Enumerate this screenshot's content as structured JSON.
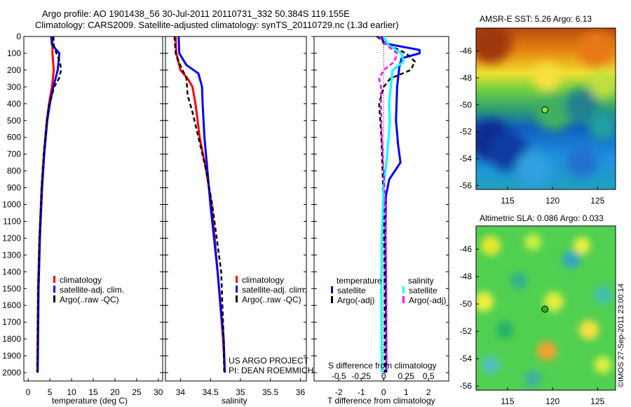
{
  "title": {
    "line1": "Argo profile: AO 1901438_56 30-Jul-2011 20110731_332 50.384S 119.155E",
    "line2": "Climatology: CARS2009. Satellite-adjusted climatology: synTS_20110729.nc (1.3d earlier)"
  },
  "credit": "©IMOS 27-Sep-2011 23:00:14",
  "chart_data": [
    {
      "type": "line",
      "id": "temperature",
      "xlabel": "temperature (deg C)",
      "ylabel": "",
      "xlim": [
        -1,
        31
      ],
      "ylim": [
        2050,
        0
      ],
      "xticks": [
        0,
        5,
        10,
        15,
        20,
        25,
        30
      ],
      "yticks": [
        0,
        100,
        200,
        300,
        400,
        500,
        600,
        700,
        800,
        900,
        1000,
        1100,
        1200,
        1300,
        1400,
        1500,
        1600,
        1700,
        1800,
        1900,
        2000
      ],
      "legend": [
        "climatology",
        "satellite-adj. clim.",
        "Argo(..raw -QC)"
      ],
      "legend_position": "bottom-center",
      "series": [
        {
          "name": "climatology",
          "color": "#ff0000",
          "depth": [
            0,
            100,
            200,
            300,
            400,
            500,
            700,
            900,
            1200,
            1500,
            2000
          ],
          "values": [
            5.6,
            5.6,
            5.9,
            5.5,
            4.8,
            4.3,
            3.6,
            3.1,
            2.6,
            2.3,
            2.1
          ]
        },
        {
          "name": "satellite-adj. clim.",
          "color": "#0000ff",
          "depth": [
            0,
            50,
            100,
            150,
            200,
            300,
            400,
            500,
            700,
            900,
            1200,
            1500,
            2000
          ],
          "values": [
            5.3,
            5.5,
            7.2,
            7.0,
            6.8,
            5.8,
            5.0,
            4.4,
            3.7,
            3.2,
            2.7,
            2.4,
            2.2
          ]
        },
        {
          "name": "Argo(..raw -QC)",
          "color": "#000000",
          "dashed": true,
          "depth": [
            0,
            50,
            100,
            150,
            200,
            250,
            300,
            400,
            500,
            700,
            900,
            1200,
            1500,
            2000
          ],
          "values": [
            5.8,
            5.9,
            6.5,
            7.3,
            7.6,
            7.1,
            6.0,
            4.9,
            4.3,
            3.6,
            3.1,
            2.6,
            2.3,
            2.1
          ]
        }
      ]
    },
    {
      "type": "line",
      "id": "salinity",
      "xlabel": "salinity",
      "xlim": [
        33.75,
        36.1
      ],
      "ylim": [
        2050,
        0
      ],
      "xticks": [
        34,
        34.5,
        35,
        35.5,
        36
      ],
      "legend": [
        "climatology",
        "satellite-adj. clim.",
        "Argo(..raw -QC)"
      ],
      "annotation": [
        "US ARGO PROJECT",
        "PI: DEAN ROEMMICH"
      ],
      "series": [
        {
          "name": "climatology",
          "color": "#ff0000",
          "depth": [
            0,
            100,
            200,
            250,
            300,
            400,
            600,
            800,
            1000,
            1400,
            1800,
            2000
          ],
          "values": [
            33.92,
            33.93,
            34.0,
            34.12,
            34.2,
            34.25,
            34.32,
            34.43,
            34.52,
            34.62,
            34.71,
            34.74
          ]
        },
        {
          "name": "satellite-adj. clim.",
          "color": "#0000ff",
          "depth": [
            0,
            100,
            170,
            220,
            300,
            400,
            600,
            800,
            1000,
            1400,
            1800,
            2000
          ],
          "values": [
            33.97,
            33.98,
            34.1,
            34.3,
            34.36,
            34.37,
            34.4,
            34.45,
            34.5,
            34.62,
            34.72,
            34.74
          ]
        },
        {
          "name": "Argo(..raw -QC)",
          "color": "#000000",
          "dashed": true,
          "depth": [
            0,
            100,
            150,
            250,
            350,
            450,
            600,
            800,
            1000,
            1400,
            1800,
            2000
          ],
          "values": [
            33.9,
            33.92,
            33.97,
            34.1,
            34.12,
            34.2,
            34.3,
            34.43,
            34.53,
            34.68,
            34.72,
            34.73
          ]
        }
      ]
    },
    {
      "type": "line",
      "id": "differences",
      "xlabel": "T difference from climatology",
      "xlabel2": "S difference from climatology",
      "xlim": [
        -3.1,
        2.9
      ],
      "ylim": [
        2050,
        0
      ],
      "xticks": [
        -2,
        -1,
        0,
        1,
        2
      ],
      "xticks2": [
        "-0.5",
        "-0.25",
        "0",
        "0.25",
        "0.5"
      ],
      "legend_groups": [
        "temperature",
        "salinity"
      ],
      "legend": [
        "satellite",
        "Argo(-adj)",
        "satellite",
        "Argo(-adj)"
      ],
      "series": [
        {
          "name": "temperature satellite",
          "color": "#0000ff",
          "depth": [
            0,
            40,
            80,
            100,
            130,
            180,
            300,
            500,
            650,
            750,
            850,
            950,
            1200,
            1500,
            2000
          ],
          "values": [
            -0.1,
            0.0,
            1.6,
            1.6,
            0.8,
            0.7,
            0.6,
            0.55,
            0.65,
            0.75,
            0.25,
            0.1,
            0.08,
            0.1,
            0.12
          ]
        },
        {
          "name": "temperature Argo(-adj)",
          "color": "#000000",
          "dashed": true,
          "depth": [
            0,
            50,
            100,
            150,
            200,
            250,
            300,
            400,
            600,
            800,
            1000,
            1500,
            2000
          ],
          "values": [
            -0.3,
            0.2,
            1.0,
            1.4,
            1.2,
            0.3,
            0.0,
            -0.2,
            -0.1,
            -0.05,
            0.0,
            0.05,
            0.05
          ]
        },
        {
          "name": "salinity satellite",
          "color": "#00ffff",
          "depth": [
            0,
            50,
            100,
            150,
            200,
            300,
            400,
            500,
            700,
            900,
            1200,
            1500,
            2000
          ],
          "values": [
            0.0,
            0.05,
            0.2,
            0.22,
            0.1,
            0.08,
            0.06,
            0.07,
            0.04,
            0.0,
            -0.02,
            -0.025,
            -0.02
          ]
        },
        {
          "name": "salinity Argo(-adj)",
          "color": "#ff00ff",
          "dashed": true,
          "depth": [
            0,
            50,
            100,
            150,
            200,
            250,
            300,
            400,
            600,
            800,
            1000,
            1500,
            2000
          ],
          "values": [
            -0.05,
            0.03,
            0.15,
            0.12,
            0.0,
            -0.05,
            -0.03,
            -0.03,
            -0.02,
            0.0,
            0.02,
            0.03,
            0.03
          ]
        }
      ]
    },
    {
      "type": "heatmap",
      "id": "sst-map",
      "title": "AMSR-E SST: 5.26 Argo: 6.13",
      "xticks": [
        115,
        120,
        125
      ],
      "yticks": [
        -46,
        -48,
        -50,
        -52,
        -54,
        -56
      ],
      "xlim": [
        111.5,
        127
      ],
      "ylim": [
        -56.3,
        -44.3
      ],
      "marker": {
        "lon": 119.155,
        "lat": -50.384
      }
    },
    {
      "type": "heatmap",
      "id": "sla-map",
      "title": "Altimetric SLA: 0.086 Argo: 0.033",
      "xticks": [
        115,
        120,
        125
      ],
      "yticks": [
        -46,
        -48,
        -50,
        -52,
        -54,
        -56
      ],
      "xlim": [
        111.5,
        127
      ],
      "ylim": [
        -56.3,
        -44.3
      ],
      "marker": {
        "lon": 119.155,
        "lat": -50.384
      }
    }
  ]
}
